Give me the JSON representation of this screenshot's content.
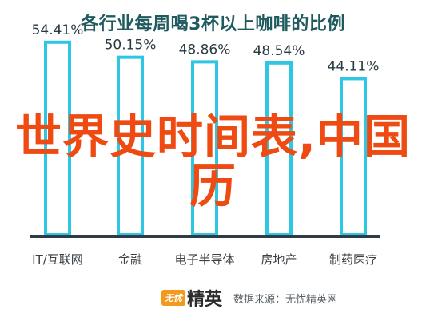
{
  "chart_data": {
    "type": "bar",
    "title": "各行业每周喝3杯以上咖啡的比例",
    "categories": [
      "IT/互联网",
      "金融",
      "电子半导体",
      "房地产",
      "制药医疗"
    ],
    "values": [
      54.41,
      50.15,
      48.86,
      48.54,
      44.11
    ],
    "value_labels": [
      "54.41%",
      "50.15%",
      "48.86%",
      "48.54%",
      "44.11%"
    ],
    "ylim": [
      0,
      60
    ],
    "grid": false,
    "bar_color": "#2ec6e3"
  },
  "overlay": {
    "text": "世界史时间表,中国历",
    "color": "#ee4a12"
  },
  "source": {
    "logo_badge": "无忧",
    "logo_text": "精英",
    "text": "数据来源：无忧精英网"
  }
}
